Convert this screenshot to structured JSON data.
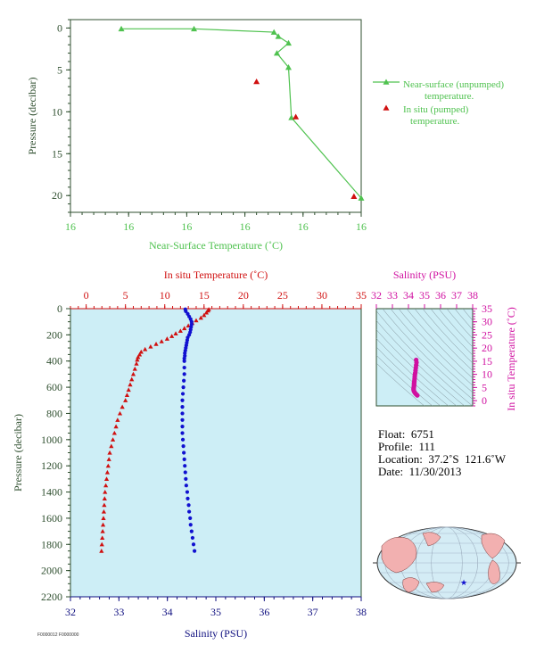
{
  "colors": {
    "green": "#4fc24f",
    "red": "#d01010",
    "blue": "#1010d0",
    "magenta": "#d010a0",
    "navy": "#101080",
    "axis_dark": "#2f4f2f",
    "panel_bg": "#cdeef6"
  },
  "info": {
    "float": "Float:  6751",
    "profile": "Profile:  111",
    "location": "Location:  37.2˚S  121.6˚W",
    "date": "Date:  11/30/2013"
  },
  "legend": {
    "line1a": "Near-surface (unpumped)",
    "line1b": "temperature.",
    "line2a": "In situ (pumped)",
    "line2b": "temperature."
  },
  "footer_tag": "F0000012 F0000000",
  "chart_data": [
    {
      "id": "near-surface",
      "type": "line",
      "xlabel": "Near-Surface Temperature (˚C)",
      "ylabel": "Pressure (decibar)",
      "xlim": [
        14.0,
        16.0
      ],
      "ylim": [
        22.0,
        -1.0
      ],
      "x_tick_labels": [
        "16",
        "16",
        "16",
        "16",
        "16",
        "16"
      ],
      "y_ticks": [
        0,
        5,
        10,
        15,
        20
      ],
      "series": [
        {
          "name": "Near-surface (unpumped) temperature.",
          "color": "green",
          "marker": "triangle",
          "x": [
            14.35,
            14.85,
            15.4,
            15.43,
            15.5,
            15.42,
            15.5,
            15.52,
            16.0
          ],
          "y": [
            0.1,
            0.1,
            0.5,
            1.0,
            1.8,
            3.0,
            4.7,
            10.7,
            20.3
          ]
        },
        {
          "name": "In situ (pumped) temperature.",
          "color": "red",
          "marker": "triangle",
          "x": [
            15.28,
            15.55,
            15.95
          ],
          "y": [
            6.4,
            10.6,
            20.1
          ]
        }
      ]
    },
    {
      "id": "profile",
      "type": "scatter",
      "top_axis_label": "In situ Temperature (˚C)",
      "bottom_axis_label": "Salinity (PSU)",
      "ylabel": "Pressure (decibar)",
      "temp_lim": [
        -2,
        35
      ],
      "sal_lim": [
        32,
        38
      ],
      "pres_lim": [
        0,
        2200
      ],
      "temp_ticks": [
        0,
        5,
        10,
        15,
        20,
        25,
        30,
        35
      ],
      "sal_ticks": [
        32,
        33,
        34,
        35,
        36,
        37,
        38
      ],
      "pres_ticks": [
        0,
        200,
        400,
        600,
        800,
        1000,
        1200,
        1400,
        1600,
        1800,
        2000,
        2200
      ],
      "temperature": {
        "pressure": [
          5,
          15,
          30,
          50,
          70,
          90,
          110,
          130,
          150,
          170,
          190,
          210,
          230,
          250,
          270,
          290,
          310,
          330,
          350,
          370,
          390,
          420,
          460,
          500,
          540,
          580,
          620,
          660,
          700,
          750,
          800,
          850,
          900,
          950,
          1000,
          1050,
          1100,
          1150,
          1200,
          1250,
          1300,
          1350,
          1400,
          1450,
          1500,
          1550,
          1600,
          1650,
          1700,
          1750,
          1800,
          1850
        ],
        "temp": [
          15.6,
          15.5,
          15.3,
          15.0,
          14.6,
          14.0,
          13.5,
          13.0,
          12.5,
          12.0,
          11.4,
          10.9,
          10.3,
          9.6,
          8.9,
          8.2,
          7.5,
          7.0,
          6.8,
          6.6,
          6.5,
          6.4,
          6.2,
          6.0,
          5.8,
          5.6,
          5.4,
          5.2,
          5.0,
          4.6,
          4.3,
          4.0,
          3.8,
          3.6,
          3.4,
          3.2,
          3.0,
          2.9,
          2.8,
          2.7,
          2.6,
          2.5,
          2.4,
          2.35,
          2.3,
          2.25,
          2.2,
          2.15,
          2.1,
          2.05,
          2.0,
          1.95
        ]
      },
      "salinity": {
        "pressure": [
          5,
          20,
          40,
          60,
          80,
          100,
          120,
          140,
          160,
          180,
          200,
          220,
          240,
          260,
          280,
          300,
          320,
          340,
          360,
          380,
          400,
          450,
          500,
          550,
          600,
          650,
          700,
          750,
          800,
          850,
          900,
          950,
          1000,
          1050,
          1100,
          1150,
          1200,
          1250,
          1300,
          1350,
          1400,
          1450,
          1500,
          1550,
          1600,
          1650,
          1700,
          1750,
          1800,
          1850
        ],
        "sal": [
          34.37,
          34.38,
          34.42,
          34.45,
          34.48,
          34.5,
          34.5,
          34.49,
          34.48,
          34.47,
          34.45,
          34.42,
          34.41,
          34.4,
          34.39,
          34.38,
          34.37,
          34.36,
          34.36,
          34.35,
          34.35,
          34.35,
          34.35,
          34.34,
          34.33,
          34.32,
          34.31,
          34.31,
          34.31,
          34.31,
          34.31,
          34.31,
          34.32,
          34.33,
          34.34,
          34.35,
          34.36,
          34.37,
          34.38,
          34.39,
          34.41,
          34.42,
          34.44,
          34.45,
          34.47,
          34.48,
          34.5,
          34.52,
          34.54,
          34.56
        ]
      }
    },
    {
      "id": "ts-diagram",
      "type": "scatter",
      "top_axis_label": "Salinity (PSU)",
      "right_axis_label": "In situ Temperature (˚C)",
      "sal_lim": [
        32,
        38
      ],
      "temp_lim": [
        -2,
        35
      ],
      "sal_ticks": [
        32,
        33,
        34,
        35,
        36,
        37,
        38
      ],
      "temp_ticks": [
        0,
        5,
        10,
        15,
        20,
        25,
        30,
        35
      ],
      "points": {
        "sal": [
          34.48,
          34.5,
          34.48,
          34.46,
          34.44,
          34.42,
          34.4,
          34.39,
          34.38,
          34.37,
          34.36,
          34.35,
          34.35,
          34.35,
          34.34,
          34.33,
          34.32,
          34.32,
          34.33,
          34.36,
          34.4,
          34.45,
          34.5,
          34.55
        ],
        "temp": [
          15.5,
          14.5,
          13.5,
          12.5,
          11.5,
          10.5,
          9.8,
          9.0,
          8.2,
          7.5,
          7.0,
          6.6,
          6.2,
          5.8,
          5.4,
          5.0,
          4.6,
          4.2,
          3.8,
          3.4,
          3.0,
          2.6,
          2.3,
          2.0
        ]
      }
    }
  ]
}
